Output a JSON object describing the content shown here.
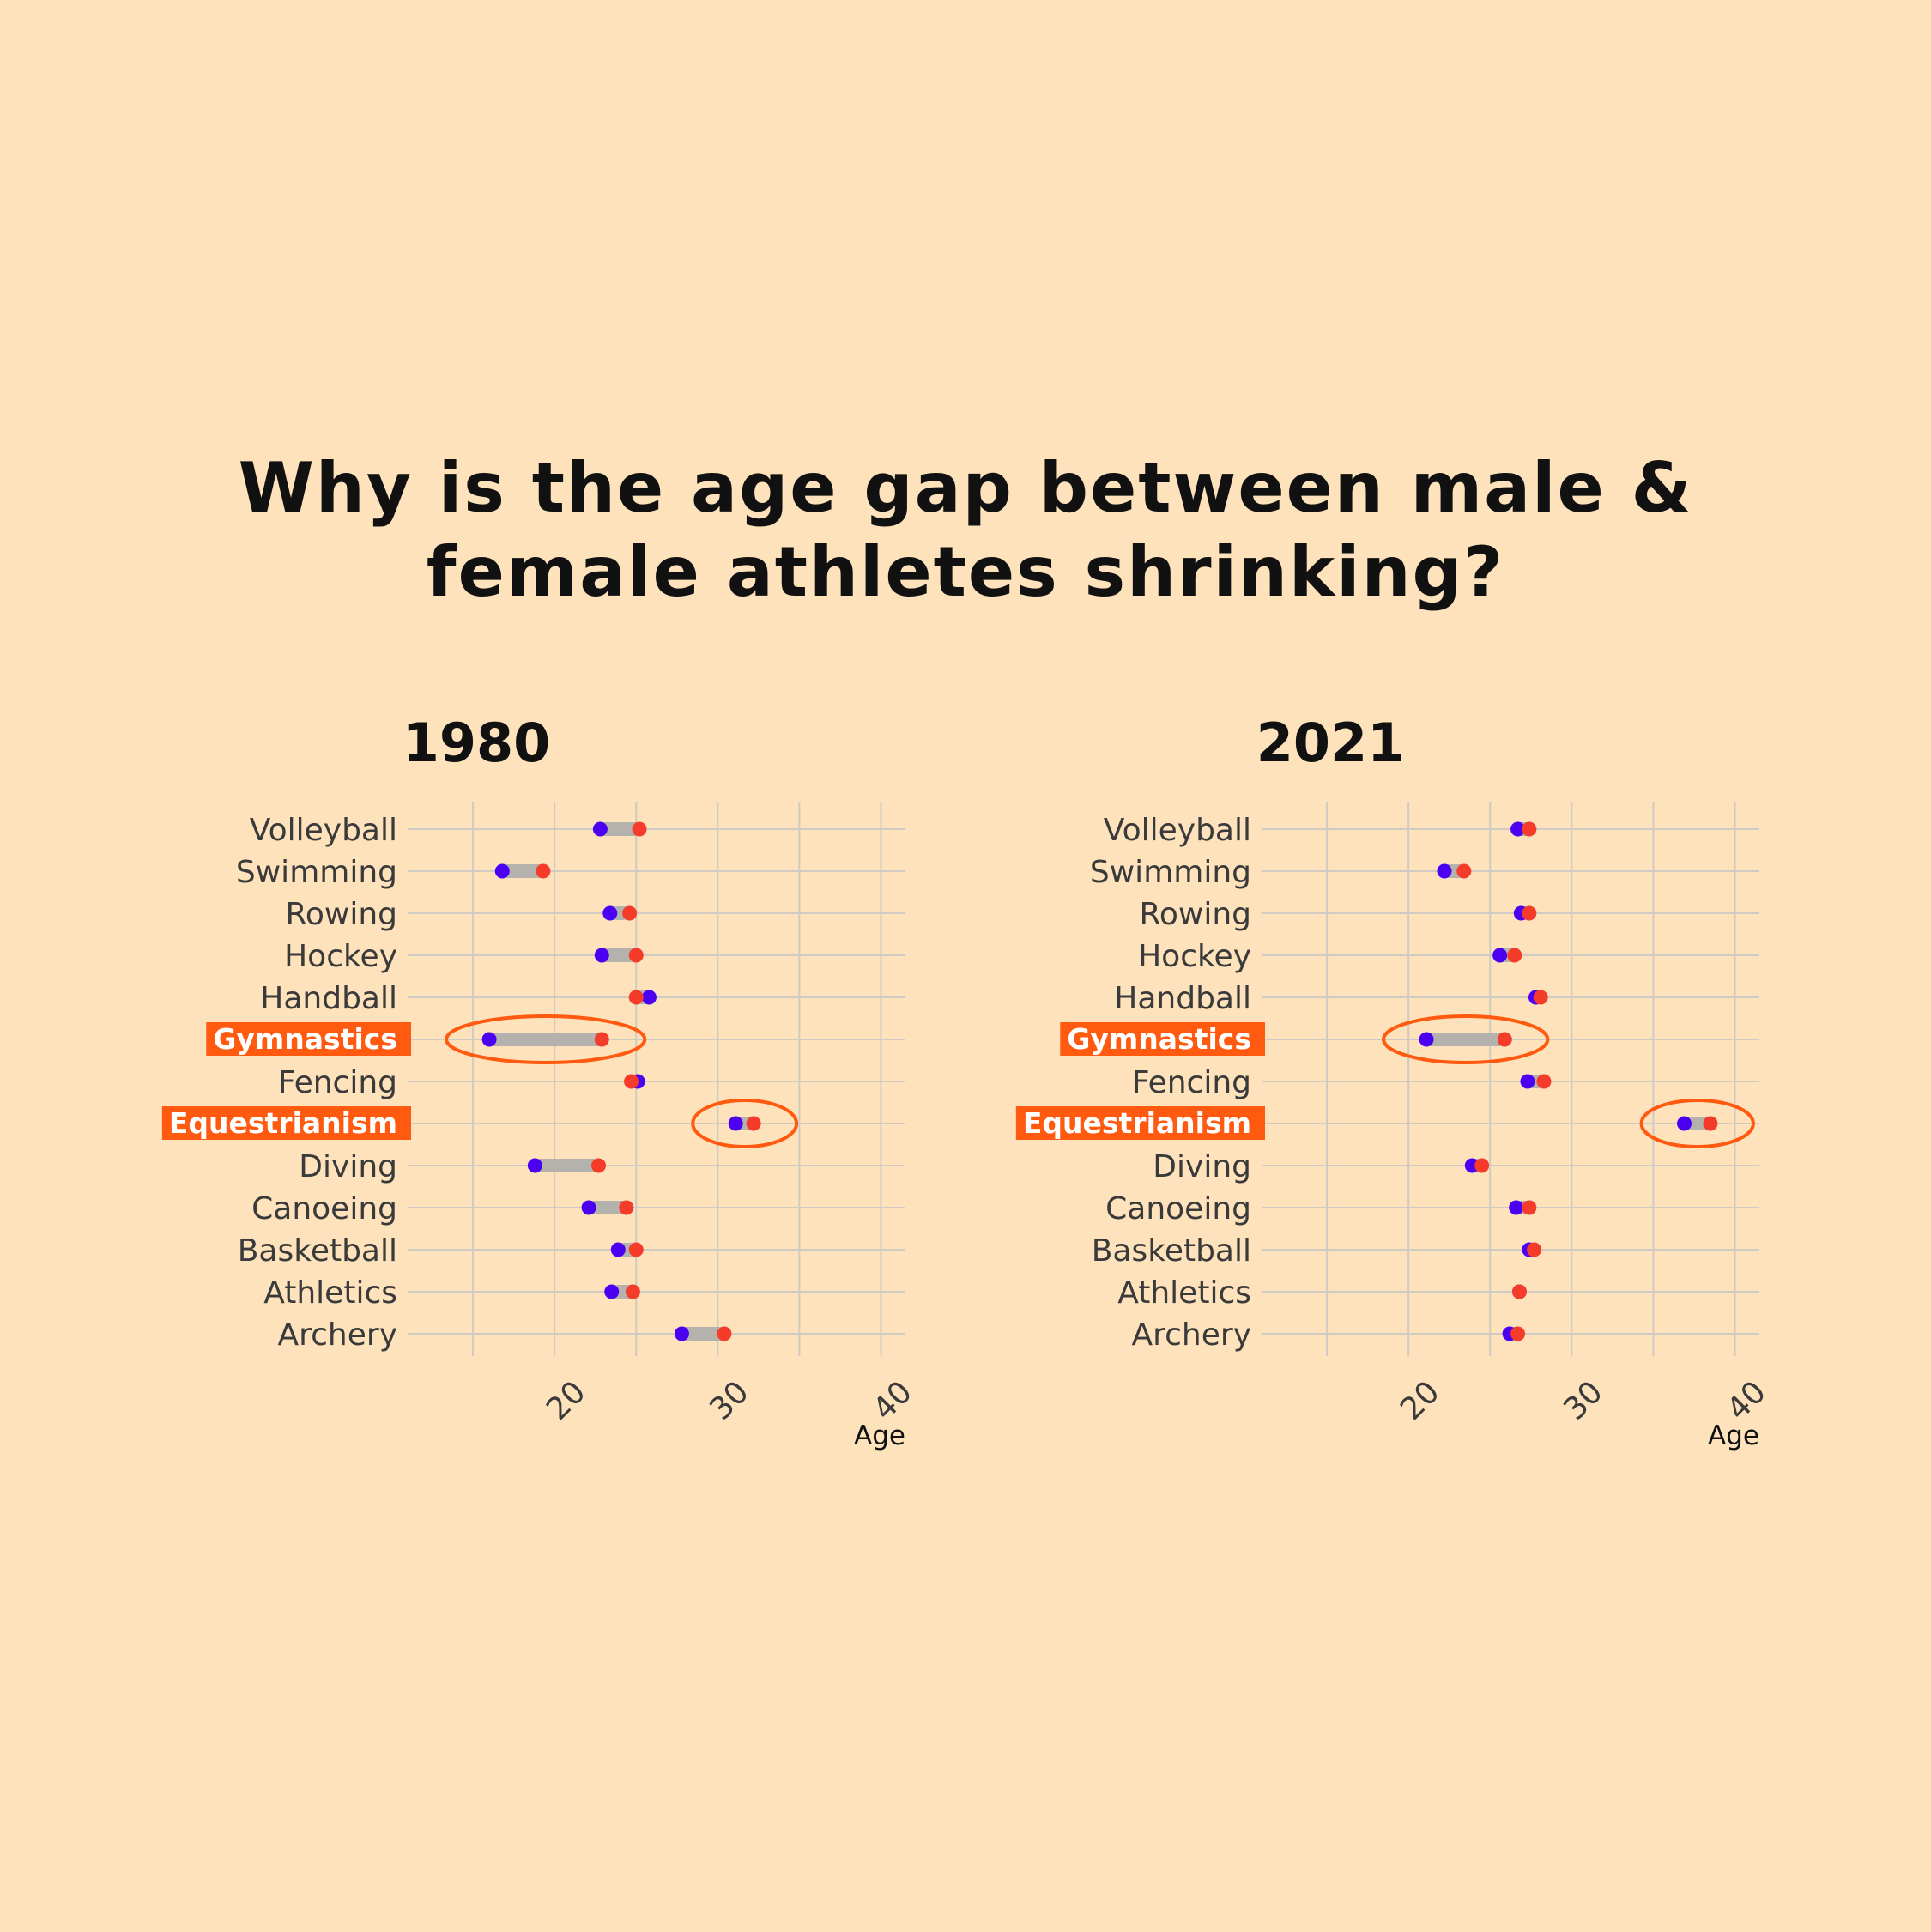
{
  "title_lines": [
    "Why is the age gap between male &",
    "female athletes shrinking?"
  ],
  "colors": {
    "background": "#fde2bc",
    "male": "#4c00f2",
    "female": "#f53c2b",
    "connector": "#b4b2ad",
    "highlight": "#ff5a0f",
    "grid": "#cfcac2"
  },
  "chart_data": [
    {
      "type": "dumbbell",
      "title": "1980",
      "xlabel": "Age",
      "ylabel": "",
      "xlim": [
        11,
        41.5
      ],
      "x_ticks": [
        20,
        30,
        40
      ],
      "grid": true,
      "highlighted": [
        "Gymnastics",
        "Equestrianism"
      ],
      "categories": [
        "Volleyball",
        "Swimming",
        "Rowing",
        "Hockey",
        "Handball",
        "Gymnastics",
        "Fencing",
        "Equestrianism",
        "Diving",
        "Canoeing",
        "Basketball",
        "Athletics",
        "Archery"
      ],
      "series": [
        {
          "color": "#4c00f2",
          "values": [
            22.8,
            16.8,
            23.4,
            22.9,
            25.8,
            16.0,
            25.1,
            31.1,
            18.8,
            22.1,
            23.9,
            23.5,
            27.8
          ]
        },
        {
          "color": "#f53c2b",
          "values": [
            25.2,
            19.3,
            24.6,
            25.0,
            25.0,
            22.9,
            24.7,
            32.2,
            22.7,
            24.4,
            25.0,
            24.8,
            30.4
          ]
        }
      ]
    },
    {
      "type": "dumbbell",
      "title": "2021",
      "xlabel": "Age",
      "ylabel": "",
      "xlim": [
        11,
        41.5
      ],
      "x_ticks": [
        20,
        30,
        40
      ],
      "grid": true,
      "highlighted": [
        "Gymnastics",
        "Equestrianism"
      ],
      "categories": [
        "Volleyball",
        "Swimming",
        "Rowing",
        "Hockey",
        "Handball",
        "Gymnastics",
        "Fencing",
        "Equestrianism",
        "Diving",
        "Canoeing",
        "Basketball",
        "Athletics",
        "Archery"
      ],
      "series": [
        {
          "color": "#4c00f2",
          "values": [
            26.7,
            22.2,
            26.9,
            25.6,
            27.8,
            21.1,
            27.3,
            36.9,
            23.9,
            26.6,
            27.4,
            26.8,
            26.2
          ]
        },
        {
          "color": "#f53c2b",
          "values": [
            27.4,
            23.4,
            27.4,
            26.5,
            28.1,
            25.9,
            28.3,
            38.5,
            24.5,
            27.4,
            27.7,
            26.8,
            26.7
          ]
        }
      ]
    }
  ]
}
